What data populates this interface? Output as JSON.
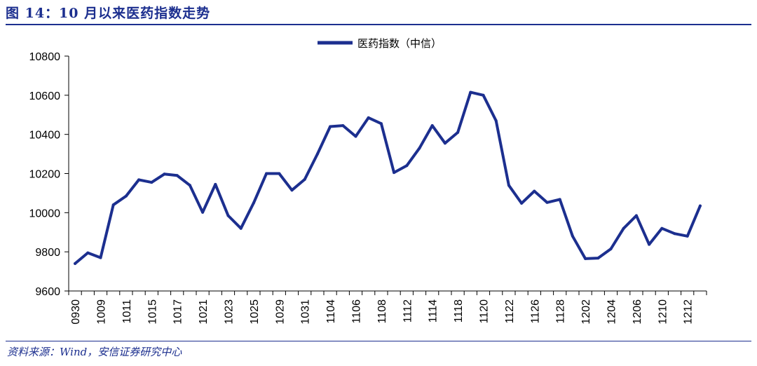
{
  "figure": {
    "title": "图 14：10 月以来医药指数走势",
    "source": "资料来源：Wind，安信证券研究中心"
  },
  "colors": {
    "accent": "#1c2f8f",
    "series": "#1c2f8f"
  },
  "chart_data": {
    "type": "line",
    "title": "",
    "xlabel": "",
    "ylabel": "",
    "ylim": [
      9600,
      10800
    ],
    "yticks": [
      9600,
      9800,
      10000,
      10200,
      10400,
      10600,
      10800
    ],
    "grid": false,
    "legend_position": "top-center",
    "x_tick_labels": [
      "0930",
      "1009",
      "1011",
      "1015",
      "1017",
      "1021",
      "1023",
      "1025",
      "1029",
      "1031",
      "1104",
      "1106",
      "1108",
      "1112",
      "1114",
      "1118",
      "1120",
      "1122",
      "1126",
      "1128",
      "1202",
      "1204",
      "1206",
      "1210",
      "1212"
    ],
    "series": [
      {
        "name": "医药指数（中信）",
        "values": [
          9740,
          9795,
          9770,
          10040,
          10085,
          10168,
          10155,
          10197,
          10190,
          10140,
          10002,
          10145,
          9985,
          9920,
          10050,
          10200,
          10200,
          10115,
          10170,
          10300,
          10440,
          10445,
          10390,
          10485,
          10455,
          10205,
          10240,
          10330,
          10445,
          10355,
          10410,
          10615,
          10600,
          10470,
          10140,
          10048,
          10110,
          10052,
          10068,
          9880,
          9765,
          9768,
          9815,
          9920,
          9985,
          9838,
          9920,
          9893,
          9880,
          10035
        ]
      }
    ]
  }
}
